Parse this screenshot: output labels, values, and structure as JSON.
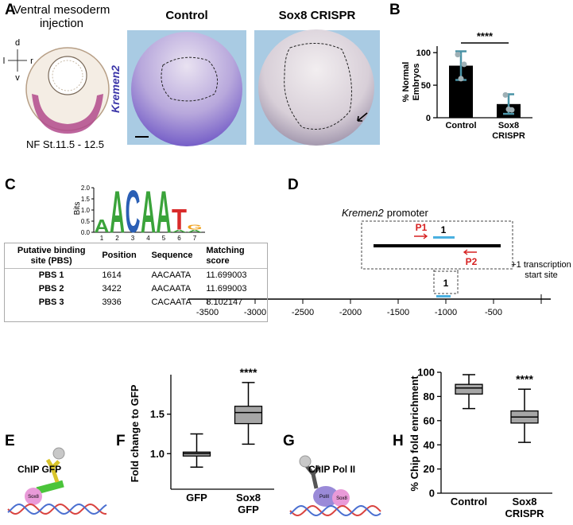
{
  "panel_labels": [
    "A",
    "B",
    "C",
    "D",
    "E",
    "F",
    "G",
    "H"
  ],
  "panel_a": {
    "title": "Ventral mesoderm injection",
    "orientation": {
      "dorsal": "d",
      "left": "l",
      "right": "r",
      "ventral": "v"
    },
    "stage": "NF St.11.5 - 12.5",
    "gene": "Kremen2",
    "conditions": [
      "Control",
      "Sox8 CRISPR"
    ]
  },
  "chart_data": [
    {
      "type": "bar",
      "ylabel": "% Normal Embryos",
      "categories": [
        "Control",
        "Sox8 CRISPR"
      ],
      "values": [
        80,
        21
      ],
      "errors": [
        22,
        15
      ],
      "points": [
        [
          97,
          60,
          82
        ],
        [
          35,
          13,
          12
        ]
      ],
      "color": "#000000",
      "error_color": "#4a93a6",
      "point_color": "#9fb0b5",
      "ylim": [
        0,
        110
      ],
      "yticks": [
        0,
        50,
        100
      ],
      "annotation": "****"
    },
    {
      "type": "box",
      "ylabel": "Fold change to GFP",
      "categories": [
        "GFP",
        "Sox8 GFP"
      ],
      "min": [
        0.83,
        1.12
      ],
      "q1": [
        0.97,
        1.38
      ],
      "median": [
        1.0,
        1.52
      ],
      "q3": [
        1.02,
        1.6
      ],
      "max": [
        1.25,
        1.9
      ],
      "color": "#a6a6a6",
      "ylim": [
        0.55,
        2.0
      ],
      "yticks": [
        {
          "value": 1.0,
          "label": "1.0"
        },
        {
          "value": 1.5,
          "label": "1.5"
        }
      ],
      "annotation": "****"
    },
    {
      "type": "box",
      "ylabel": "% Chip fold enrichment",
      "categories": [
        "Control",
        "Sox8 CRISPR"
      ],
      "min": [
        70,
        42
      ],
      "q1": [
        82,
        58
      ],
      "median": [
        87,
        63
      ],
      "q3": [
        90,
        68
      ],
      "max": [
        98,
        86
      ],
      "color": "#a6a6a6",
      "ylim": [
        0,
        100
      ],
      "yticks": [
        0,
        20,
        40,
        60,
        80,
        100
      ],
      "annotation": "****"
    }
  ],
  "logo": {
    "ylabel": "Bits",
    "ylim": [
      0,
      2
    ],
    "yticks": [
      {
        "value": 0,
        "label": "0.0"
      },
      0.5,
      {
        "value": 1,
        "label": "1.0"
      },
      1.5,
      {
        "value": 2,
        "label": "2.0"
      }
    ],
    "positions": [
      1,
      2,
      3,
      4,
      5,
      6,
      7
    ],
    "stacks": [
      [
        {
          "letter": "A",
          "bits": 0.6
        }
      ],
      [
        {
          "letter": "A",
          "bits": 1.92
        }
      ],
      [
        {
          "letter": "C",
          "bits": 1.92
        }
      ],
      [
        {
          "letter": "A",
          "bits": 1.92
        }
      ],
      [
        {
          "letter": "A",
          "bits": 1.92
        }
      ],
      [
        {
          "letter": "A",
          "bits": 0.12
        },
        {
          "letter": "T",
          "bits": 0.95
        }
      ],
      [
        {
          "letter": "A",
          "bits": 0.12
        },
        {
          "letter": "G",
          "bits": 0.22
        }
      ]
    ],
    "colors": {
      "A": "#3aa33a",
      "C": "#2a5fb5",
      "G": "#f0a21e",
      "T": "#d92a2a"
    }
  },
  "table": {
    "header": [
      "Putative binding site (PBS)",
      "Position",
      "Sequence",
      "Matching score"
    ],
    "rows": [
      [
        "PBS 1",
        1614,
        "AACAATA",
        11.699003
      ],
      [
        "PBS 2",
        3422,
        "AACAATA",
        11.699003
      ],
      [
        "PBS 3",
        3936,
        "CACAATA",
        8.102147
      ]
    ]
  },
  "promoter": {
    "gene": "Kremen2",
    "label": "promoter",
    "primers": [
      "P1",
      "P2"
    ],
    "site": "1",
    "site_range": [
      -1100,
      -950
    ],
    "tss": 0,
    "tss_label": "+1 transcription start site",
    "xlim": [
      -3700,
      100
    ],
    "xticks": [
      -3500,
      -3000,
      -2500,
      -2000,
      -1500,
      -1000,
      -500
    ]
  },
  "chip": [
    {
      "title": "ChIP GFP",
      "proteins": [
        "Sox8"
      ]
    },
    {
      "title": "ChIP Pol II",
      "proteins": [
        "PolII",
        "Sox8"
      ]
    }
  ]
}
